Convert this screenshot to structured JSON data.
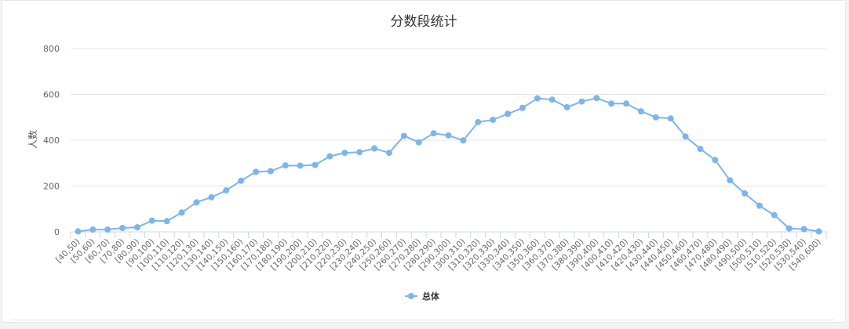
{
  "chart_data": {
    "type": "line",
    "title": "分数段统计",
    "xlabel": "",
    "ylabel": "人数",
    "ylim": [
      0,
      800
    ],
    "yticks": [
      0,
      200,
      400,
      600,
      800
    ],
    "grid": true,
    "legend_position": "bottom-center",
    "colors": {
      "series": "#7cb5ec",
      "grid": "#e6e6e6",
      "axis": "#ccd6eb"
    },
    "categories": [
      "[40,50)",
      "[50,60)",
      "[60,70)",
      "[70,80)",
      "[80,90)",
      "[90,100)",
      "[100,110)",
      "[110,120)",
      "[120,130)",
      "[130,140)",
      "[140,150)",
      "[150,160)",
      "[160,170)",
      "[170,180)",
      "[180,190)",
      "[190,200)",
      "[200,210)",
      "[210,220)",
      "[220,230)",
      "[230,240)",
      "[240,250)",
      "[250,260)",
      "[260,270)",
      "[270,280)",
      "[280,290)",
      "[290,300)",
      "[300,310)",
      "[310,320)",
      "[320,330)",
      "[330,340)",
      "[340,350)",
      "[350,360)",
      "[360,370)",
      "[370,380)",
      "[380,390)",
      "[390,400)",
      "[400,410)",
      "[410,420)",
      "[420,430)",
      "[430,440)",
      "[440,450)",
      "[450,460)",
      "[460,470)",
      "[470,480)",
      "[480,490)",
      "[490,500)",
      "[500,510)",
      "[510,520)",
      "[520,530)",
      "[530,540)",
      "[540,600)"
    ],
    "series": [
      {
        "name": "总体",
        "values": [
          2,
          10,
          10,
          17,
          20,
          49,
          47,
          84,
          129,
          151,
          181,
          223,
          262,
          265,
          290,
          289,
          292,
          330,
          345,
          348,
          364,
          345,
          419,
          391,
          430,
          421,
          399,
          479,
          489,
          515,
          541,
          583,
          577,
          544,
          569,
          584,
          560,
          560,
          526,
          500,
          495,
          416,
          362,
          314,
          225,
          168,
          114,
          73,
          15,
          12,
          2
        ]
      }
    ]
  }
}
